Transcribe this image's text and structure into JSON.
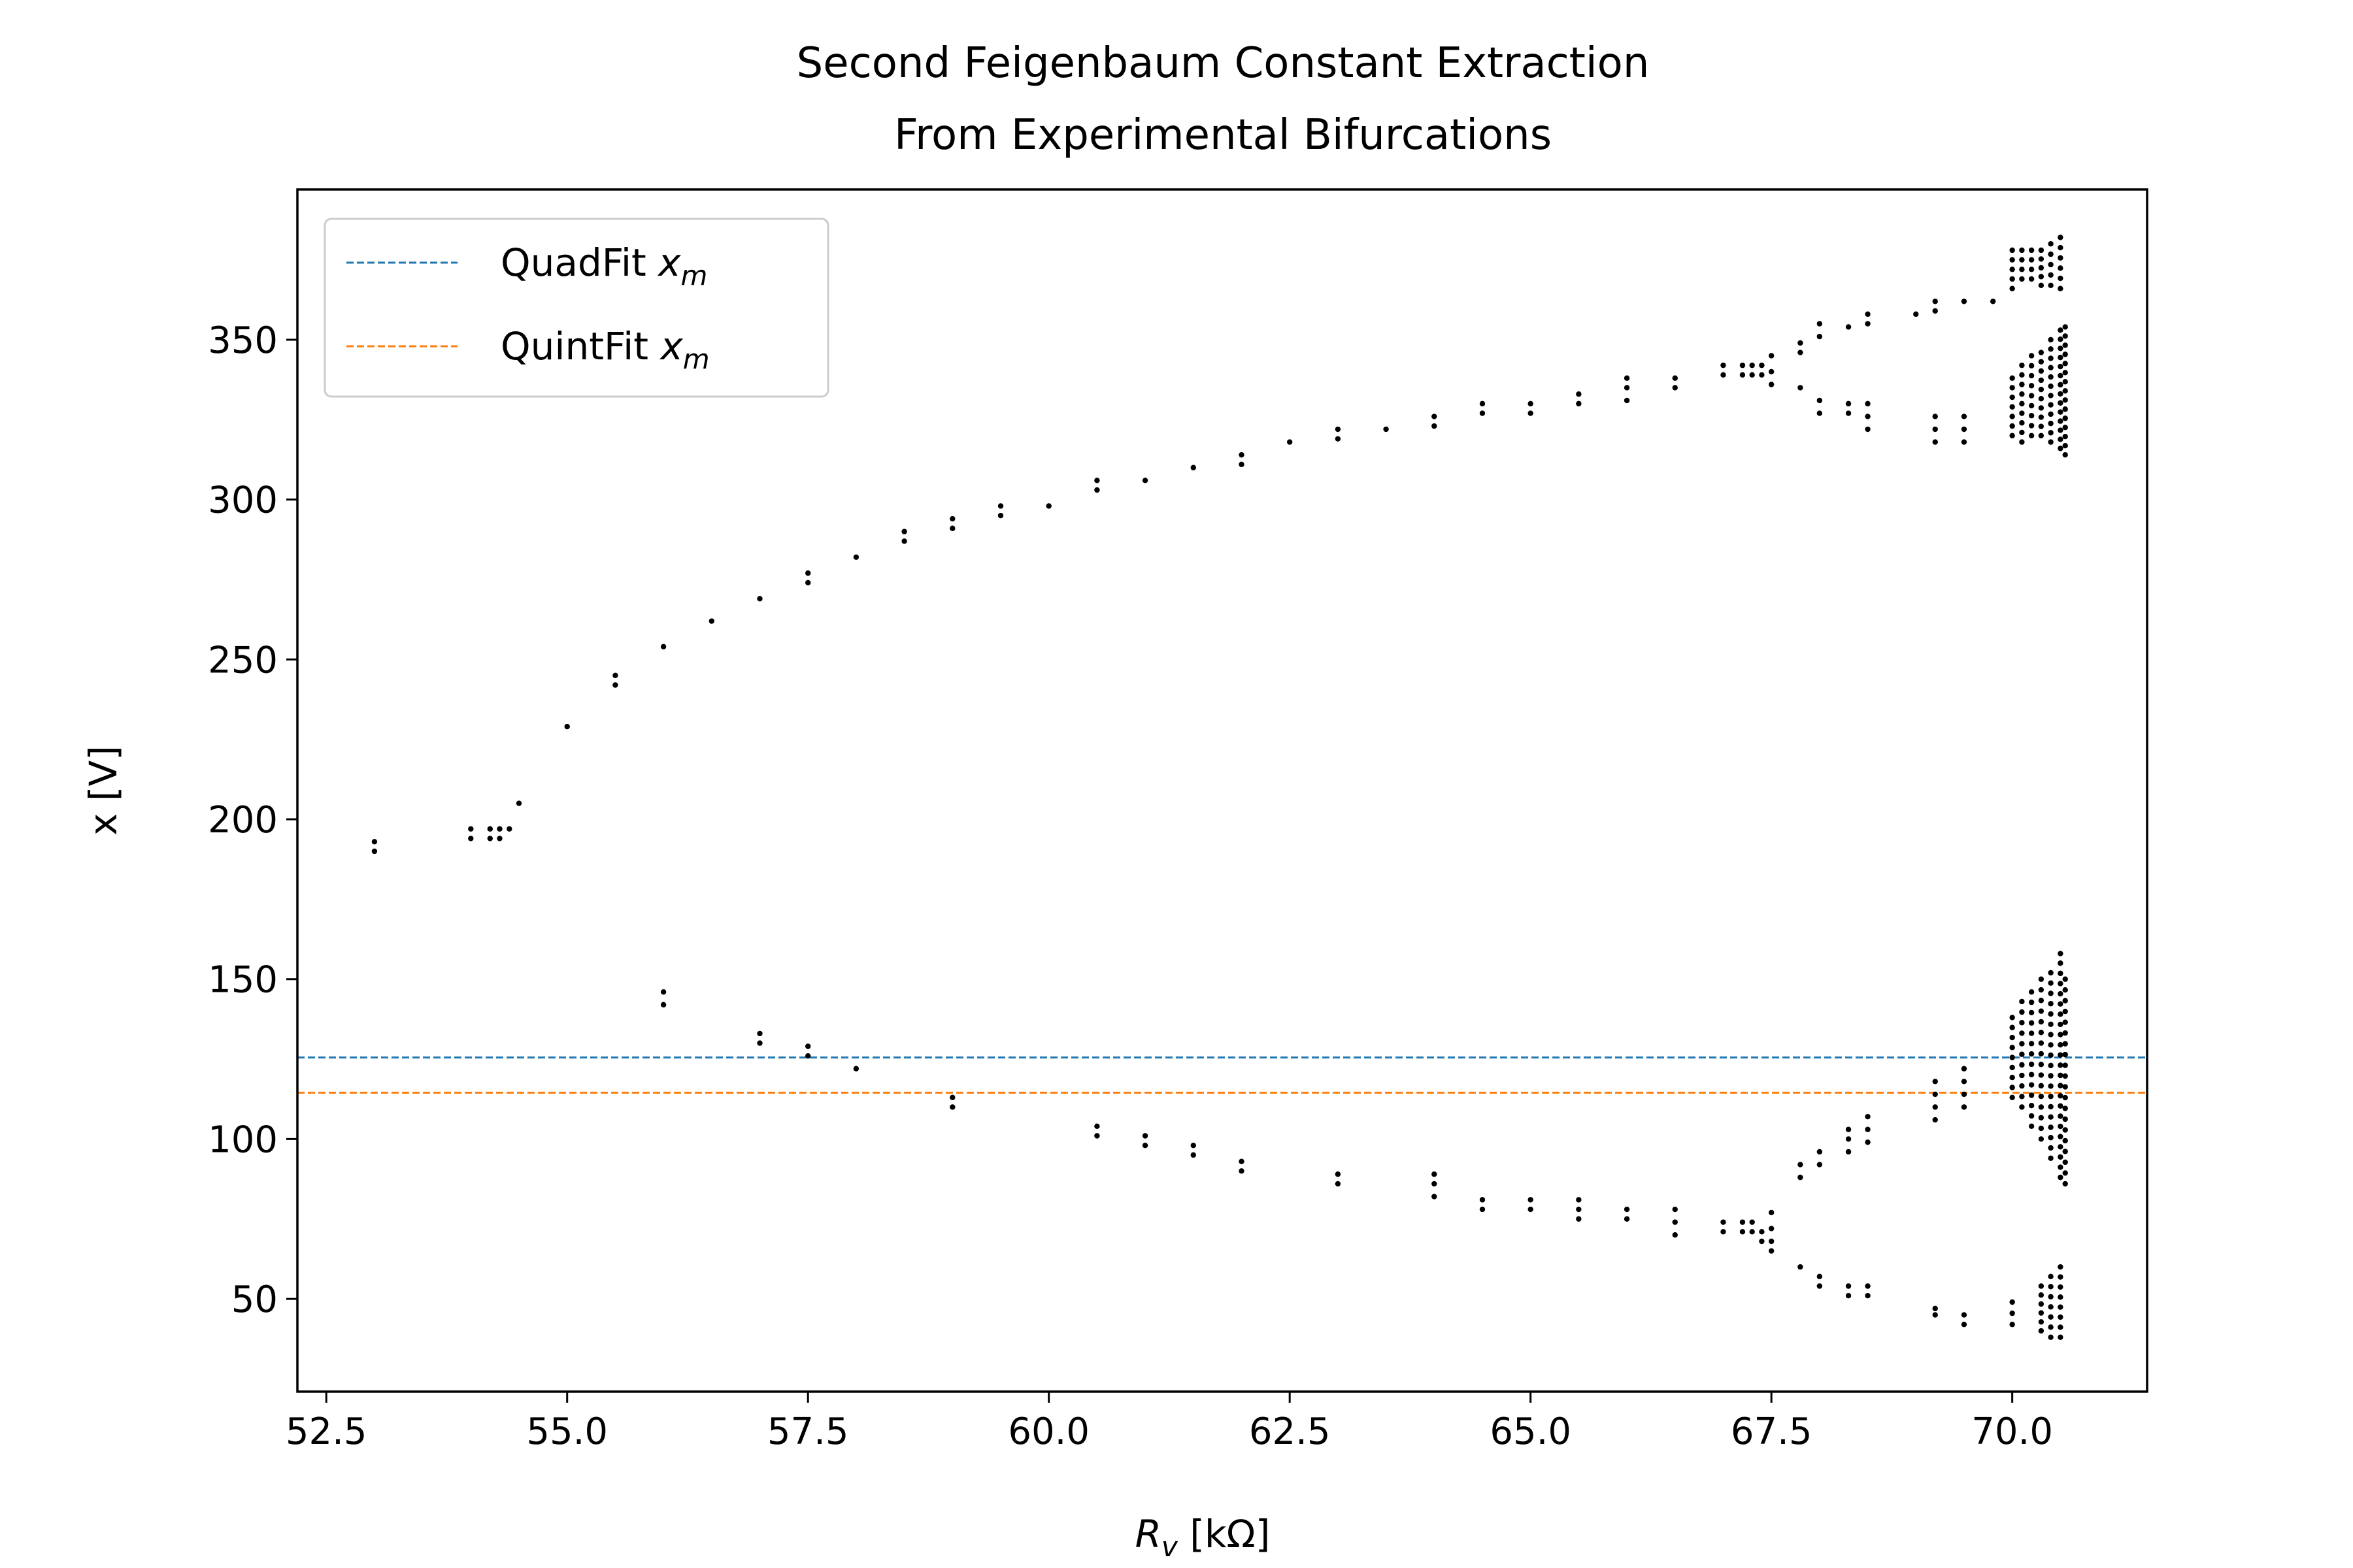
{
  "chart_data": {
    "type": "scatter",
    "title": [
      "Second Feigenbaum Constant Extraction",
      "From Experimental Bifurcations"
    ],
    "xlabel": {
      "symbol": "R",
      "sub": "v",
      "unit": " [kΩ]"
    },
    "ylabel": "x [V]",
    "xlim": [
      52.2,
      71.4
    ],
    "ylim": [
      21,
      397
    ],
    "xticks": [
      52.5,
      55.0,
      57.5,
      60.0,
      62.5,
      65.0,
      67.5,
      70.0
    ],
    "xtick_labels": [
      "52.5",
      "55.0",
      "57.5",
      "60.0",
      "62.5",
      "65.0",
      "67.5",
      "70.0"
    ],
    "yticks": [
      50,
      100,
      150,
      200,
      250,
      300,
      350
    ],
    "ytick_labels": [
      "50",
      "100",
      "150",
      "200",
      "250",
      "300",
      "350"
    ],
    "grid": false,
    "legend": {
      "placement": "top-left"
    },
    "hlines": [
      {
        "label_main": "QuadFit ",
        "label_var": "x",
        "label_sub": "m",
        "y": 125.5,
        "color": "#1f77b4"
      },
      {
        "label_main": "QuintFit ",
        "label_var": "x",
        "label_sub": "m",
        "y": 114.5,
        "color": "#ff7f0e"
      }
    ],
    "point_color": "#000000",
    "points": [
      [
        53.0,
        190
      ],
      [
        53.0,
        193
      ],
      [
        54.0,
        194
      ],
      [
        54.0,
        197
      ],
      [
        54.2,
        194
      ],
      [
        54.2,
        197
      ],
      [
        54.3,
        194
      ],
      [
        54.3,
        197
      ],
      [
        54.4,
        197
      ],
      [
        54.5,
        205
      ],
      [
        55.0,
        229
      ],
      [
        55.5,
        242
      ],
      [
        55.5,
        245
      ],
      [
        56.0,
        254
      ],
      [
        56.5,
        262
      ],
      [
        57.0,
        269
      ],
      [
        57.5,
        274
      ],
      [
        57.5,
        277
      ],
      [
        58.0,
        282
      ],
      [
        58.5,
        287
      ],
      [
        58.5,
        290
      ],
      [
        59.0,
        291
      ],
      [
        59.0,
        294
      ],
      [
        59.5,
        295
      ],
      [
        59.5,
        298
      ],
      [
        60.0,
        298
      ],
      [
        60.5,
        303
      ],
      [
        60.5,
        306
      ],
      [
        61.0,
        306
      ],
      [
        61.5,
        310
      ],
      [
        62.0,
        311
      ],
      [
        62.0,
        314
      ],
      [
        62.5,
        318
      ],
      [
        63.0,
        319
      ],
      [
        63.0,
        322
      ],
      [
        63.5,
        322
      ],
      [
        64.0,
        323
      ],
      [
        64.0,
        326
      ],
      [
        64.5,
        327
      ],
      [
        64.5,
        330
      ],
      [
        65.0,
        327
      ],
      [
        65.0,
        330
      ],
      [
        65.5,
        330
      ],
      [
        65.5,
        333
      ],
      [
        66.0,
        331
      ],
      [
        66.0,
        335
      ],
      [
        66.0,
        338
      ],
      [
        66.5,
        335
      ],
      [
        66.5,
        338
      ],
      [
        67.0,
        339
      ],
      [
        67.0,
        342
      ],
      [
        67.2,
        339
      ],
      [
        67.2,
        342
      ],
      [
        67.3,
        339
      ],
      [
        67.3,
        342
      ],
      [
        67.4,
        339
      ],
      [
        67.4,
        342
      ],
      [
        67.5,
        336
      ],
      [
        67.5,
        340
      ],
      [
        67.5,
        345
      ],
      [
        67.8,
        335
      ],
      [
        67.8,
        346
      ],
      [
        67.8,
        349
      ],
      [
        68.0,
        327
      ],
      [
        68.0,
        331
      ],
      [
        68.0,
        351
      ],
      [
        68.0,
        355
      ],
      [
        68.3,
        327
      ],
      [
        68.3,
        330
      ],
      [
        68.3,
        354
      ],
      [
        68.5,
        322
      ],
      [
        68.5,
        326
      ],
      [
        68.5,
        330
      ],
      [
        68.5,
        355
      ],
      [
        68.5,
        358
      ],
      [
        69.0,
        358
      ],
      [
        69.2,
        318
      ],
      [
        69.2,
        322
      ],
      [
        69.2,
        326
      ],
      [
        69.2,
        359
      ],
      [
        69.2,
        362
      ],
      [
        69.5,
        318
      ],
      [
        69.5,
        322
      ],
      [
        69.5,
        326
      ],
      [
        69.5,
        362
      ],
      [
        69.8,
        362
      ],
      [
        60.5,
        104
      ],
      [
        60.5,
        101
      ],
      [
        61.0,
        101
      ],
      [
        61.0,
        98
      ],
      [
        61.5,
        98
      ],
      [
        61.5,
        95
      ],
      [
        62.0,
        93
      ],
      [
        62.0,
        90
      ],
      [
        63.0,
        89
      ],
      [
        63.0,
        86
      ],
      [
        64.0,
        89
      ],
      [
        64.0,
        86
      ],
      [
        64.0,
        82
      ],
      [
        64.5,
        81
      ],
      [
        64.5,
        78
      ],
      [
        65.0,
        81
      ],
      [
        65.0,
        78
      ],
      [
        65.5,
        81
      ],
      [
        65.5,
        78
      ],
      [
        65.5,
        75
      ],
      [
        66.0,
        78
      ],
      [
        66.0,
        75
      ],
      [
        66.5,
        78
      ],
      [
        66.5,
        74
      ],
      [
        66.5,
        70
      ],
      [
        67.0,
        74
      ],
      [
        67.0,
        71
      ],
      [
        67.2,
        74
      ],
      [
        67.2,
        71
      ],
      [
        67.3,
        74
      ],
      [
        67.3,
        71
      ],
      [
        67.4,
        71
      ],
      [
        67.4,
        68
      ],
      [
        67.5,
        77
      ],
      [
        67.5,
        72
      ],
      [
        67.5,
        68
      ],
      [
        67.5,
        65
      ],
      [
        67.8,
        60
      ],
      [
        67.8,
        88
      ],
      [
        67.8,
        92
      ],
      [
        68.0,
        57
      ],
      [
        68.0,
        54
      ],
      [
        68.0,
        92
      ],
      [
        68.0,
        96
      ],
      [
        68.3,
        54
      ],
      [
        68.3,
        51
      ],
      [
        68.3,
        96
      ],
      [
        68.3,
        100
      ],
      [
        68.3,
        103
      ],
      [
        68.5,
        54
      ],
      [
        68.5,
        51
      ],
      [
        68.5,
        99
      ],
      [
        68.5,
        103
      ],
      [
        68.5,
        107
      ],
      [
        69.2,
        47
      ],
      [
        69.2,
        45
      ],
      [
        69.2,
        106
      ],
      [
        69.2,
        110
      ],
      [
        69.2,
        114
      ],
      [
        69.2,
        118
      ],
      [
        69.5,
        45
      ],
      [
        69.5,
        42
      ],
      [
        69.5,
        110
      ],
      [
        69.5,
        114
      ],
      [
        69.5,
        118
      ],
      [
        69.5,
        122
      ],
      [
        56.0,
        146
      ],
      [
        56.0,
        142
      ],
      [
        57.0,
        133
      ],
      [
        57.0,
        130
      ],
      [
        57.5,
        129
      ],
      [
        57.5,
        126
      ],
      [
        58.0,
        122
      ],
      [
        59.0,
        113
      ],
      [
        59.0,
        110
      ],
      [
        70.5,
        158
      ]
    ],
    "clusters": [
      {
        "x": 70.0,
        "y_min": 113,
        "y_max": 138,
        "n": 9
      },
      {
        "x": 70.1,
        "y_min": 110,
        "y_max": 143,
        "n": 11
      },
      {
        "x": 70.2,
        "y_min": 104,
        "y_max": 146,
        "n": 14
      },
      {
        "x": 70.3,
        "y_min": 100,
        "y_max": 150,
        "n": 16
      },
      {
        "x": 70.4,
        "y_min": 94,
        "y_max": 152,
        "n": 19
      },
      {
        "x": 70.5,
        "y_min": 88,
        "y_max": 155,
        "n": 22
      },
      {
        "x": 70.55,
        "y_min": 86,
        "y_max": 150,
        "n": 20
      },
      {
        "x": 70.0,
        "y_min": 42,
        "y_max": 49,
        "n": 3
      },
      {
        "x": 70.3,
        "y_min": 40,
        "y_max": 54,
        "n": 6
      },
      {
        "x": 70.4,
        "y_min": 38,
        "y_max": 57,
        "n": 7
      },
      {
        "x": 70.5,
        "y_min": 38,
        "y_max": 60,
        "n": 8
      },
      {
        "x": 70.0,
        "y_min": 320,
        "y_max": 338,
        "n": 7
      },
      {
        "x": 70.1,
        "y_min": 318,
        "y_max": 342,
        "n": 9
      },
      {
        "x": 70.2,
        "y_min": 320,
        "y_max": 345,
        "n": 9
      },
      {
        "x": 70.3,
        "y_min": 320,
        "y_max": 346,
        "n": 10
      },
      {
        "x": 70.4,
        "y_min": 318,
        "y_max": 350,
        "n": 12
      },
      {
        "x": 70.5,
        "y_min": 316,
        "y_max": 353,
        "n": 14
      },
      {
        "x": 70.55,
        "y_min": 314,
        "y_max": 354,
        "n": 15
      },
      {
        "x": 70.0,
        "y_min": 366,
        "y_max": 378,
        "n": 5
      },
      {
        "x": 70.1,
        "y_min": 369,
        "y_max": 378,
        "n": 4
      },
      {
        "x": 70.2,
        "y_min": 369,
        "y_max": 378,
        "n": 4
      },
      {
        "x": 70.3,
        "y_min": 367,
        "y_max": 378,
        "n": 5
      },
      {
        "x": 70.4,
        "y_min": 367,
        "y_max": 380,
        "n": 5
      },
      {
        "x": 70.5,
        "y_min": 366,
        "y_max": 382,
        "n": 6
      }
    ]
  }
}
